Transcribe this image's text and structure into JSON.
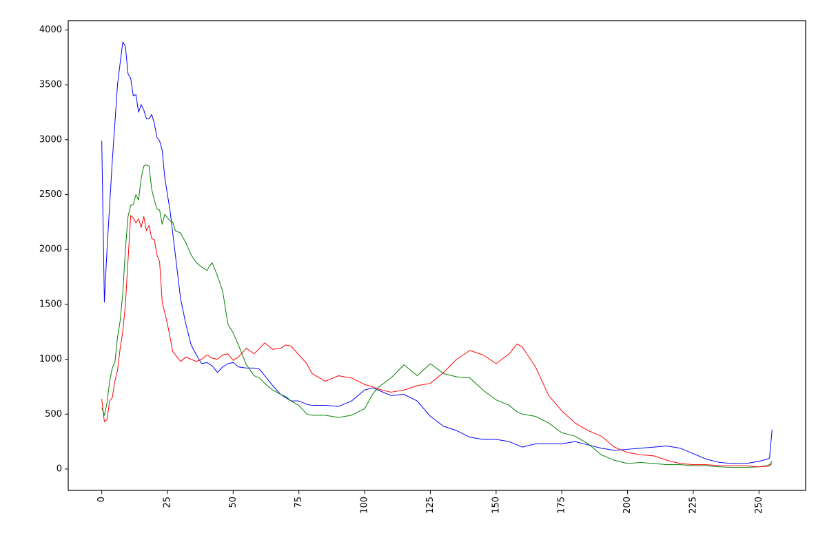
{
  "chart_data": {
    "type": "line",
    "x": [
      0,
      1,
      2,
      3,
      4,
      5,
      6,
      7,
      8,
      9,
      10,
      11,
      12,
      13,
      14,
      15,
      16,
      17,
      18,
      19,
      20,
      21,
      22,
      23,
      24,
      25,
      26,
      27,
      28,
      30,
      32,
      34,
      36,
      38,
      40,
      42,
      44,
      46,
      48,
      50,
      52,
      55,
      58,
      60,
      62,
      65,
      68,
      70,
      72,
      75,
      78,
      80,
      85,
      90,
      95,
      100,
      103,
      105,
      110,
      115,
      120,
      125,
      130,
      135,
      140,
      145,
      150,
      155,
      158,
      160,
      165,
      170,
      175,
      180,
      185,
      190,
      195,
      200,
      205,
      210,
      215,
      220,
      225,
      230,
      235,
      240,
      245,
      250,
      253,
      254,
      255
    ],
    "series": [
      {
        "color": "#0000ff",
        "values": [
          2990,
          1520,
          2000,
          2400,
          2800,
          3150,
          3500,
          3700,
          3890,
          3850,
          3600,
          3560,
          3400,
          3410,
          3250,
          3320,
          3270,
          3190,
          3190,
          3230,
          3150,
          3020,
          2990,
          2900,
          2650,
          2500,
          2350,
          2150,
          1950,
          1550,
          1320,
          1130,
          1040,
          960,
          970,
          940,
          880,
          930,
          960,
          970,
          930,
          920,
          920,
          910,
          850,
          760,
          680,
          650,
          620,
          620,
          590,
          580,
          580,
          570,
          620,
          720,
          740,
          720,
          670,
          680,
          620,
          480,
          390,
          350,
          290,
          270,
          270,
          250,
          220,
          200,
          230,
          230,
          230,
          250,
          220,
          190,
          170,
          180,
          190,
          200,
          210,
          190,
          140,
          90,
          60,
          50,
          50,
          70,
          90,
          100,
          360
        ]
      },
      {
        "color": "#008000",
        "values": [
          560,
          490,
          600,
          800,
          920,
          970,
          1200,
          1350,
          1600,
          2000,
          2300,
          2400,
          2410,
          2500,
          2450,
          2650,
          2760,
          2770,
          2760,
          2550,
          2450,
          2370,
          2360,
          2230,
          2320,
          2290,
          2260,
          2250,
          2170,
          2150,
          2060,
          1950,
          1880,
          1840,
          1810,
          1880,
          1760,
          1620,
          1320,
          1240,
          1130,
          950,
          850,
          830,
          780,
          720,
          680,
          660,
          620,
          580,
          500,
          490,
          490,
          470,
          490,
          550,
          680,
          740,
          830,
          950,
          850,
          960,
          870,
          840,
          830,
          720,
          630,
          580,
          520,
          500,
          480,
          420,
          330,
          300,
          230,
          130,
          80,
          50,
          60,
          50,
          40,
          40,
          30,
          30,
          20,
          15,
          15,
          20,
          30,
          40,
          70
        ]
      },
      {
        "color": "#ff0000",
        "values": [
          640,
          430,
          450,
          620,
          650,
          800,
          900,
          1100,
          1250,
          1500,
          1900,
          2310,
          2290,
          2240,
          2280,
          2200,
          2300,
          2170,
          2220,
          2100,
          2090,
          1950,
          1890,
          1520,
          1420,
          1320,
          1200,
          1070,
          1040,
          980,
          1020,
          1000,
          980,
          1000,
          1040,
          1010,
          1000,
          1040,
          1050,
          990,
          1020,
          1100,
          1050,
          1100,
          1150,
          1090,
          1100,
          1130,
          1120,
          1040,
          960,
          870,
          800,
          850,
          830,
          770,
          750,
          730,
          700,
          720,
          760,
          780,
          880,
          1000,
          1080,
          1040,
          960,
          1050,
          1140,
          1110,
          930,
          670,
          530,
          420,
          350,
          300,
          200,
          150,
          130,
          120,
          80,
          50,
          40,
          40,
          30,
          30,
          30,
          20,
          25,
          30,
          50
        ]
      }
    ],
    "xlim": [
      -12.75,
      267.75
    ],
    "ylim": [
      -194.5,
      4084.5
    ],
    "xticks": [
      0,
      25,
      50,
      75,
      100,
      125,
      150,
      175,
      200,
      225,
      250
    ],
    "yticks": [
      0,
      500,
      1000,
      1500,
      2000,
      2500,
      3000,
      3500,
      4000
    ],
    "grid": false
  }
}
